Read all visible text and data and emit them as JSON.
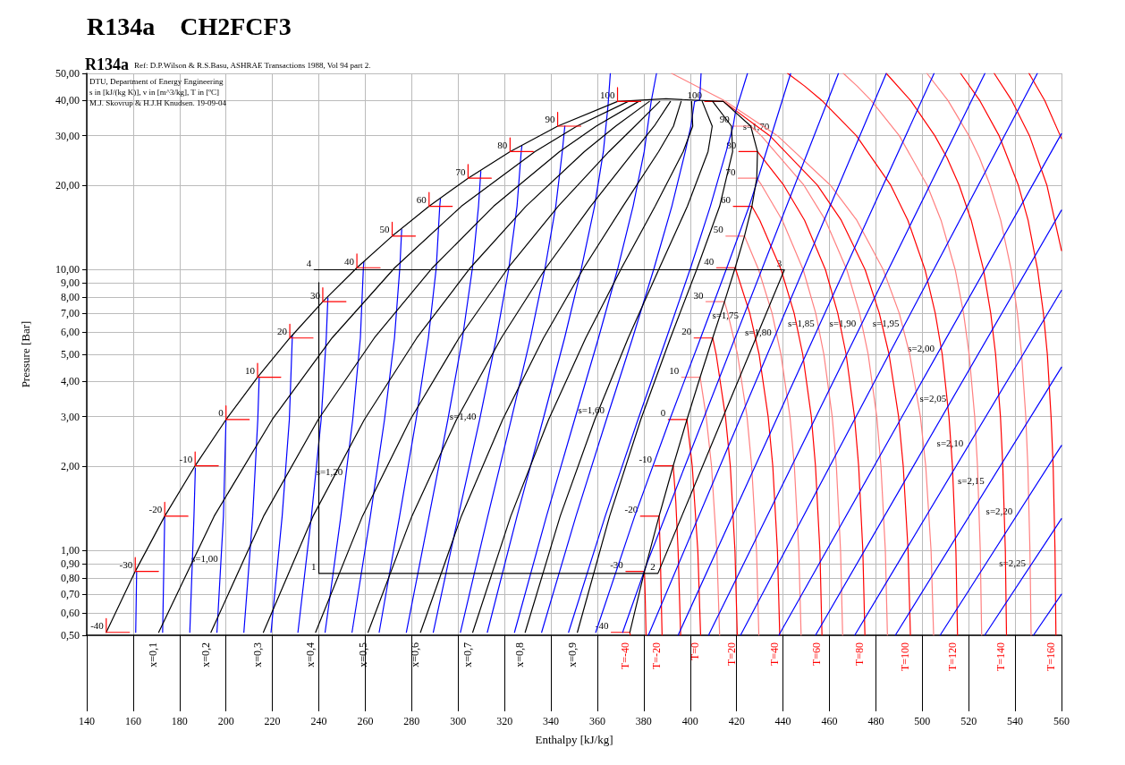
{
  "chart_data": {
    "type": "line",
    "title": "R134a    CH2FCF3",
    "xlabel": "Enthalpy [kJ/kg]",
    "ylabel": "Pressure [Bar]",
    "log": "y",
    "grid": true,
    "marker": "none",
    "line_style": "solid",
    "xlim": [
      140,
      560
    ],
    "ylim": [
      0.5,
      50
    ],
    "xticks": [
      140,
      160,
      180,
      200,
      220,
      240,
      260,
      280,
      300,
      320,
      340,
      360,
      380,
      400,
      420,
      440,
      460,
      480,
      500,
      520,
      540,
      560
    ],
    "yticks": [
      {
        "value": 0.5,
        "label": "0,50"
      },
      {
        "value": 0.6,
        "label": "0,60"
      },
      {
        "value": 0.7,
        "label": "0,70"
      },
      {
        "value": 0.8,
        "label": "0,80"
      },
      {
        "value": 0.9,
        "label": "0,90"
      },
      {
        "value": 1,
        "label": "1,00"
      },
      {
        "value": 2,
        "label": "2,00"
      },
      {
        "value": 3,
        "label": "3,00"
      },
      {
        "value": 4,
        "label": "4,00"
      },
      {
        "value": 5,
        "label": "5,00"
      },
      {
        "value": 6,
        "label": "6,00"
      },
      {
        "value": 7,
        "label": "7,00"
      },
      {
        "value": 8,
        "label": "8,00"
      },
      {
        "value": 9,
        "label": "9,00"
      },
      {
        "value": 10,
        "label": "10,00"
      },
      {
        "value": 20,
        "label": "20,00"
      },
      {
        "value": 30,
        "label": "30,00"
      },
      {
        "value": 40,
        "label": "40,00"
      },
      {
        "value": 50,
        "label": "50,00"
      }
    ],
    "series": [
      {
        "name": "T=-40",
        "color": "#ff0000",
        "x": [
          366.0,
          374.0,
          374.2
        ],
        "values": [
          0.512,
          0.512,
          0.5
        ]
      },
      {
        "color": "#ff0000",
        "x": [
          372.3,
          380.3,
          380.6,
          381.0
        ],
        "values": [
          0.844,
          0.844,
          0.7,
          0.5
        ]
      },
      {
        "name": "T=-20",
        "color": "#ff0000",
        "x": [
          378.6,
          386.6,
          387.1,
          387.9
        ],
        "values": [
          1.327,
          1.327,
          1,
          0.5
        ]
      },
      {
        "color": "#ff0000",
        "x": [
          384.7,
          392.7,
          393.8,
          394.8,
          395.9
        ],
        "values": [
          2.006,
          2.006,
          1.5,
          1,
          0.5
        ]
      },
      {
        "name": "T=0",
        "color": "#ff0000",
        "x": [
          390.6,
          398.6,
          400.9,
          403.3,
          404.5
        ],
        "values": [
          2.928,
          2.928,
          2,
          1,
          0.5
        ]
      },
      {
        "color": "#ff8080",
        "x": [
          396.3,
          404.3,
          406.9,
          409.2,
          411.5,
          412.7
        ],
        "values": [
          4.146,
          4.146,
          3,
          2,
          1,
          0.5
        ]
      },
      {
        "name": "T=20",
        "color": "#ff0000",
        "x": [
          401.7,
          409.7,
          411.2,
          415.2,
          417.3,
          419.3,
          420.3
        ],
        "values": [
          5.717,
          5.717,
          5,
          3,
          2,
          1,
          0.5
        ]
      },
      {
        "color": "#ff8080",
        "x": [
          406.8,
          414.8,
          416.2,
          420.4,
          424.5,
          426.5,
          428.6,
          429.6
        ],
        "values": [
          7.702,
          7.702,
          7,
          5,
          3,
          2,
          1,
          0.5
        ]
      },
      {
        "name": "T=40",
        "color": "#ff0000",
        "x": [
          411.4,
          419.4,
          425.7,
          429.7,
          433.6,
          435.6,
          437.6,
          438.6
        ],
        "values": [
          10.166,
          10.166,
          7,
          5,
          3,
          2,
          1,
          0.5
        ]
      },
      {
        "color": "#ff8080",
        "x": [
          415.4,
          423.4,
          429.5,
          435.3,
          439.1,
          443.0,
          444.9,
          446.8,
          447.8
        ],
        "values": [
          13.18,
          13.18,
          10,
          7,
          5,
          3,
          2,
          1,
          0.5
        ]
      },
      {
        "name": "T=60",
        "color": "#ff0000",
        "x": [
          418.6,
          426.6,
          430.0,
          439.2,
          444.8,
          448.5,
          452.2,
          454.0,
          455.9,
          456.8
        ],
        "values": [
          16.82,
          16.82,
          15,
          10,
          7,
          5,
          3,
          2,
          1,
          0.5
        ]
      },
      {
        "color": "#ff8080",
        "x": [
          420.7,
          428.7,
          430.8,
          439.7,
          448.7,
          454.1,
          457.6,
          461.2,
          463.0,
          464.8,
          465.7
        ],
        "values": [
          21.17,
          21.17,
          20,
          15,
          10,
          7,
          5,
          3,
          2,
          1,
          0.5
        ]
      },
      {
        "name": "T=80",
        "color": "#ff0000",
        "x": [
          421.0,
          429.0,
          440.3,
          449.3,
          458.3,
          463.6,
          467.2,
          470.8,
          472.6,
          474.4,
          475.3
        ],
        "values": [
          26.33,
          26.33,
          20,
          15,
          10,
          7,
          5,
          3,
          2,
          1,
          0.5
        ]
      },
      {
        "color": "#ff8080",
        "x": [
          418.1,
          426.1,
          430.6,
          449.0,
          458.3,
          467.5,
          473.0,
          476.7,
          480.4,
          482.2,
          484.1,
          485.0
        ],
        "values": [
          32.44,
          32.44,
          30,
          20,
          15,
          10,
          7,
          5,
          3,
          2,
          1,
          0.5
        ]
      },
      {
        "name": "T=100",
        "color": "#ff0000",
        "x": [
          406.3,
          414.3,
          434.3,
          454.8,
          465.1,
          475.4,
          481.5,
          485.7,
          489.8,
          491.8,
          493.9,
          494.9
        ],
        "values": [
          39.72,
          39.72,
          30,
          20,
          15,
          10,
          7,
          5,
          3,
          2,
          1,
          0.5
        ]
      },
      {
        "color": "#ff8080",
        "x": [
          392,
          414.8,
          437.6,
          460.4,
          471.8,
          483.2,
          490.1,
          494.6,
          499.2,
          501.5,
          503.8,
          504.9
        ],
        "values": [
          50,
          40,
          30,
          20,
          15,
          10,
          7,
          5,
          3,
          2,
          1,
          0.5
        ]
      },
      {
        "name": "T=120",
        "color": "#ff0000",
        "x": [
          442,
          449.4,
          456.8,
          471.6,
          486.4,
          493.8,
          501.2,
          505.6,
          508.6,
          511.5,
          513.0,
          514.5,
          515.2
        ],
        "values": [
          50,
          45,
          40,
          30,
          20,
          15,
          10,
          7,
          5,
          3,
          2,
          1,
          0.5
        ]
      },
      {
        "color": "#ff8080",
        "x": [
          466,
          472.0,
          478.0,
          490.1,
          502.1,
          508.1,
          514.2,
          517.8,
          520.2,
          522.6,
          523.8,
          525.0,
          525.6
        ],
        "values": [
          50,
          45,
          40,
          30,
          20,
          15,
          10,
          7,
          5,
          3,
          2,
          1,
          0.5
        ]
      },
      {
        "name": "T=140",
        "color": "#ff0000",
        "x": [
          484.5,
          495.0,
          505.4,
          510.7,
          515.9,
          521.1,
          526.4,
          529.5,
          531.6,
          533.7,
          534.7,
          535.8,
          536.3
        ],
        "values": [
          50,
          40,
          30,
          25,
          20,
          15,
          10,
          7,
          5,
          3,
          2,
          1,
          0.5
        ]
      },
      {
        "color": "#ff8080",
        "x": [
          502,
          511.1,
          520.1,
          524.7,
          529.2,
          533.8,
          538.3,
          541.0,
          542.8,
          544.6,
          545.5,
          546.4,
          546.9
        ],
        "values": [
          50,
          40,
          30,
          25,
          20,
          15,
          10,
          7,
          5,
          3,
          2,
          1,
          0.5
        ]
      },
      {
        "name": "T=160",
        "color": "#ff0000",
        "x": [
          516.5,
          524.8,
          533.1,
          541.4,
          545.6,
          549.7,
          552.2,
          553.9,
          555.5,
          556.4,
          557.2,
          557.6
        ],
        "values": [
          50,
          40,
          30,
          20,
          15,
          10,
          7,
          5,
          3,
          2,
          1,
          0.5
        ]
      },
      {
        "color": "#ff0000",
        "x": [
          531,
          538.6,
          546.2,
          553.7,
          560
        ],
        "values": [
          50,
          40,
          30,
          20,
          11.7
        ]
      },
      {
        "color": "#ff0000",
        "x": [
          546,
          552.8,
          560
        ],
        "values": [
          50,
          40,
          29.3
        ]
      },
      {
        "color": "#0000ff",
        "x": [
          161.1,
          161.5
        ],
        "values": [
          0.512,
          0.84
        ]
      },
      {
        "color": "#0000ff",
        "x": [
          172.7,
          173.6
        ],
        "values": [
          0.512,
          1.327
        ]
      },
      {
        "color": "#0000ff",
        "x": [
          184.4,
          186.2,
          186.8
        ],
        "values": [
          0.512,
          1.327,
          1.969
        ]
      },
      {
        "color": "#0000ff",
        "x": [
          196.1,
          198.9,
          200.0
        ],
        "values": [
          0.512,
          1.327,
          2.928
        ]
      },
      {
        "color": "#0000ff",
        "x": [
          207.7,
          211.5,
          213.7,
          214.3
        ],
        "values": [
          0.512,
          1.327,
          2.928,
          4.143
        ]
      },
      {
        "color": "#0000ff",
        "x": [
          219.4,
          224.2,
          227.3,
          228.6
        ],
        "values": [
          0.512,
          1.327,
          2.928,
          5.85
        ]
      },
      {
        "color": "#0000ff",
        "x": [
          231.0,
          236.8,
          241.0,
          243.2,
          243.9
        ],
        "values": [
          0.512,
          1.327,
          2.928,
          5.717,
          7.93
        ]
      },
      {
        "color": "#0000ff",
        "x": [
          242.7,
          249.5,
          254.6,
          257.9,
          259.2,
          259.4
        ],
        "values": [
          0.512,
          1.327,
          2.928,
          5.717,
          10.166,
          10.67
        ]
      },
      {
        "color": "#0000ff",
        "x": [
          254.3,
          262.2,
          268.3,
          272.6,
          274.9,
          275.7
        ],
        "values": [
          0.512,
          1.327,
          2.928,
          5.717,
          10.166,
          13.9
        ]
      },
      {
        "color": "#0000ff",
        "x": [
          266.0,
          274.8,
          281.9,
          287.2,
          290.6,
          292.1,
          292.4
        ],
        "values": [
          0.512,
          1.327,
          2.928,
          5.717,
          10.166,
          16.82,
          17.9
        ]
      },
      {
        "color": "#0000ff",
        "x": [
          277.7,
          287.5,
          295.6,
          301.9,
          306.2,
          308.8,
          309.8
        ],
        "values": [
          0.512,
          1.327,
          2.928,
          5.717,
          10.166,
          16.82,
          22.39
        ]
      },
      {
        "color": "#0000ff",
        "x": [
          289.3,
          300.1,
          309.3,
          316.5,
          321.9,
          325.4,
          327.2,
          327.5
        ],
        "values": [
          0.512,
          1.327,
          2.928,
          5.717,
          10.166,
          16.82,
          26.33,
          27.55
        ]
      },
      {
        "color": "#0000ff",
        "x": [
          301.0,
          312.8,
          322.9,
          331.2,
          337.5,
          342.1,
          344.9,
          346.0
        ],
        "values": [
          0.512,
          1.327,
          2.928,
          5.717,
          10.166,
          16.82,
          26.33,
          32.47
        ]
      },
      {
        "color": "#0000ff",
        "x": [
          312.6,
          325.4,
          336.6,
          345.9,
          353.2,
          358.8,
          362.6,
          364.6,
          365.6
        ],
        "values": [
          0.512,
          1.327,
          2.928,
          5.717,
          10.166,
          16.82,
          26.33,
          38.29,
          50
        ]
      },
      {
        "color": "#0000ff",
        "x": [
          324.3,
          338.1,
          350.2,
          360.5,
          368.9,
          375.4,
          380.2,
          383.2,
          385.5
        ],
        "values": [
          0.512,
          1.327,
          2.928,
          5.717,
          10.166,
          16.82,
          26.33,
          39.72,
          50
        ]
      },
      {
        "color": "#0000ff",
        "x": [
          336.0,
          350.8,
          363.9,
          375.2,
          384.5,
          392.1,
          397.9,
          400.3,
          401.9,
          404.1,
          404.7
        ],
        "values": [
          0.512,
          1.327,
          2.928,
          5.717,
          10.166,
          16.82,
          26.33,
          32.44,
          39.72,
          40.2,
          50
        ]
      },
      {
        "color": "#0000ff",
        "x": [
          347.6,
          363.4,
          377.5,
          389.8,
          400.2,
          408.7,
          415.5,
          418.5,
          419.5,
          424.7
        ],
        "values": [
          0.512,
          1.327,
          2.928,
          5.717,
          10.166,
          16.82,
          26.33,
          32.44,
          36.3,
          50
        ]
      },
      {
        "color": "#0000ff",
        "x": [
          359.3,
          376.1,
          391.2,
          404.5,
          415.8,
          425.4,
          427.2,
          443.3
        ],
        "values": [
          0.512,
          1.327,
          2.928,
          5.717,
          10.166,
          16.82,
          18.68,
          50
        ]
      },
      {
        "color": "#0000ff",
        "x": [
          370.9,
          381.7,
          463.9
        ],
        "values": [
          0.512,
          0.916,
          50
        ]
      },
      {
        "color": "#0000ff",
        "x": [
          382.0,
          484.5
        ],
        "values": [
          0.5,
          50
        ]
      },
      {
        "color": "#0000ff",
        "x": [
          394.8,
          505.1
        ],
        "values": [
          0.5,
          50
        ]
      },
      {
        "color": "#0000ff",
        "x": [
          407.9,
          527.0
        ],
        "values": [
          0.5,
          50
        ]
      },
      {
        "color": "#0000ff",
        "x": [
          421.7,
          549.6
        ],
        "values": [
          0.5,
          50
        ]
      },
      {
        "color": "#0000ff",
        "x": [
          438.2,
          560
        ],
        "values": [
          0.5,
          30.5
        ]
      },
      {
        "color": "#0000ff",
        "x": [
          454.0,
          560
        ],
        "values": [
          0.5,
          16.3
        ]
      },
      {
        "color": "#0000ff",
        "x": [
          470.9,
          560
        ],
        "values": [
          0.5,
          8.45
        ]
      },
      {
        "color": "#0000ff",
        "x": [
          488.4,
          560
        ],
        "values": [
          0.5,
          4.5
        ]
      },
      {
        "color": "#0000ff",
        "x": [
          507.7,
          560
        ],
        "values": [
          0.5,
          2.37
        ]
      },
      {
        "color": "#0000ff",
        "x": [
          526.9,
          560
        ],
        "values": [
          0.5,
          1.3
        ]
      },
      {
        "color": "#0000ff",
        "x": [
          547.9,
          560
        ],
        "values": [
          0.5,
          0.7
        ]
      },
      {
        "name": "x=0,1",
        "color": "#000000",
        "x": [
          171.0,
          194.9,
          219.9,
          245.7,
          272.7,
          301.4,
          333.1,
          351.2,
          373.3
        ],
        "values": [
          0.512,
          1.327,
          2.928,
          5.717,
          10.166,
          16.82,
          26.33,
          32.44,
          39.72
        ]
      },
      {
        "name": "x=0,2",
        "color": "#000000",
        "x": [
          193.5,
          216.2,
          239.7,
          263.9,
          289.0,
          315.3,
          343.7,
          359.5,
          377.8
        ],
        "values": [
          0.512,
          1.327,
          2.928,
          5.717,
          10.166,
          16.82,
          26.33,
          32.44,
          39.72
        ]
      },
      {
        "name": "x=0,3",
        "color": "#000000",
        "x": [
          216.1,
          237.5,
          259.6,
          282.2,
          305.3,
          329.2,
          354.4,
          367.9,
          382.4
        ],
        "values": [
          0.512,
          1.327,
          2.928,
          5.717,
          10.166,
          16.82,
          26.33,
          32.44,
          39.72
        ]
      },
      {
        "name": "x=0,4",
        "color": "#000000",
        "x": [
          238.6,
          258.8,
          279.4,
          300.4,
          321.6,
          343.1,
          365.0,
          376.2,
          386.9
        ],
        "values": [
          0.512,
          1.327,
          2.928,
          5.717,
          10.166,
          16.82,
          26.33,
          32.44,
          39.72
        ]
      },
      {
        "name": "x=0,5",
        "color": "#000000",
        "x": [
          261.2,
          280.1,
          299.3,
          318.6,
          337.9,
          357.1,
          375.7,
          384.5,
          391.5
        ],
        "values": [
          0.512,
          1.327,
          2.928,
          5.717,
          10.166,
          16.82,
          26.33,
          32.44,
          39.72
        ]
      },
      {
        "name": "x=0,6",
        "color": "#000000",
        "x": [
          283.8,
          301.4,
          319.2,
          336.8,
          354.2,
          371.0,
          386.4,
          392.8,
          396.1
        ],
        "values": [
          0.512,
          1.327,
          2.928,
          5.717,
          10.166,
          16.82,
          26.33,
          32.44,
          39.72
        ]
      },
      {
        "name": "x=0,7",
        "color": "#000000",
        "x": [
          306.3,
          322.7,
          339.0,
          355.0,
          370.5,
          384.9,
          397.0,
          401.1,
          400.6
        ],
        "values": [
          0.512,
          1.327,
          2.928,
          5.717,
          10.166,
          16.82,
          26.33,
          32.44,
          39.72
        ]
      },
      {
        "name": "x=0,8",
        "color": "#000000",
        "x": [
          328.9,
          344.0,
          358.9,
          373.3,
          386.8,
          398.8,
          407.7,
          409.5,
          405.2
        ],
        "values": [
          0.512,
          1.327,
          2.928,
          5.717,
          10.166,
          16.82,
          26.33,
          32.44,
          39.72
        ]
      },
      {
        "name": "x=0,9",
        "color": "#000000",
        "x": [
          351.4,
          365.3,
          378.7,
          391.5,
          403.1,
          412.7,
          418.3,
          417.8,
          409.7
        ],
        "values": [
          0.512,
          1.327,
          2.928,
          5.717,
          10.166,
          16.82,
          26.33,
          32.44,
          39.72
        ]
      },
      {
        "color": "#000000",
        "x": [
          148.4,
          160.9,
          173.6,
          186.7,
          200.0,
          213.6,
          227.5,
          241.7,
          256.4,
          271.6,
          287.5,
          304.3,
          322.4,
          342.9,
          368.7,
          389.6,
          414.3,
          426.1,
          429.0,
          428.7,
          426.6,
          423.4,
          419.4,
          414.8,
          409.7,
          404.3,
          398.6,
          392.7,
          386.6,
          380.3,
          374.0
        ],
        "values": [
          0.512,
          0.844,
          1.327,
          2.006,
          2.928,
          4.146,
          5.717,
          7.702,
          10.166,
          13.18,
          16.82,
          21.17,
          26.33,
          32.44,
          39.72,
          40.59,
          39.72,
          32.44,
          26.33,
          21.17,
          16.82,
          13.18,
          10.166,
          7.702,
          5.717,
          4.146,
          2.928,
          2.006,
          1.327,
          0.844,
          0.512
        ]
      },
      {
        "color": "#ff0000",
        "x": [
          148.4,
          148.4,
          158.4,
          null,
          160.9,
          160.9,
          170.9,
          null,
          173.6,
          173.6,
          183.6,
          null,
          186.7,
          186.7,
          196.7,
          null,
          200.0,
          200.0,
          210.0,
          null,
          213.6,
          213.6,
          223.6,
          null,
          227.5,
          227.5,
          237.5,
          null,
          241.7,
          241.7,
          251.7,
          null,
          256.4,
          256.4,
          266.4,
          null,
          271.6,
          271.6,
          281.6,
          null,
          287.5,
          287.5,
          297.5,
          null,
          304.3,
          304.3,
          314.3,
          null,
          322.4,
          322.4,
          332.4,
          null,
          342.9,
          342.9,
          352.9,
          null,
          368.7,
          368.7,
          378.7
        ],
        "values": [
          0.573,
          0.512,
          0.512,
          null,
          0.945,
          0.844,
          0.844,
          null,
          1.486,
          1.327,
          1.327,
          null,
          2.247,
          2.006,
          2.006,
          null,
          3.279,
          2.928,
          2.928,
          null,
          4.644,
          4.146,
          4.146,
          null,
          6.403,
          5.717,
          5.717,
          null,
          8.626,
          7.702,
          7.702,
          null,
          11.386,
          10.166,
          10.166,
          null,
          14.76,
          13.18,
          13.18,
          null,
          18.84,
          16.82,
          16.82,
          null,
          23.71,
          21.17,
          21.17,
          null,
          29.49,
          26.33,
          26.33,
          null,
          36.33,
          32.44,
          32.44,
          null,
          44.49,
          39.72,
          39.72
        ]
      },
      {
        "color": "#000000",
        "x": [
          238,
          440.6,
          386.1,
          240,
          240
        ],
        "values": [
          10,
          10,
          0.83,
          0.83,
          9.0
        ]
      }
    ],
    "annotations": [
      "R134a",
      "Ref: D.P.Wilson & R.S.Basu, ASHRAE Transactions 1988, Vol 94 part 2.",
      "DTU, Department of Energy Engineering",
      "s in [kJ/(kg K)], v in [m^3/kg], T in [ºC]",
      "M.J. Skovrup & H.J.H Knudsen. 19-09-04",
      {
        "text": "-40",
        "x": 148.4,
        "y": 0.512
      },
      {
        "text": "-30",
        "x": 160.9,
        "y": 0.844
      },
      {
        "text": "-20",
        "x": 173.6,
        "y": 1.327
      },
      {
        "text": "-10",
        "x": 186.7,
        "y": 2.006
      },
      {
        "text": "0",
        "x": 200.0,
        "y": 2.928
      },
      {
        "text": "10",
        "x": 213.6,
        "y": 4.146
      },
      {
        "text": "20",
        "x": 227.5,
        "y": 5.717
      },
      {
        "text": "30",
        "x": 241.7,
        "y": 7.702
      },
      {
        "text": "40",
        "x": 256.4,
        "y": 10.166
      },
      {
        "text": "50",
        "x": 271.6,
        "y": 13.18
      },
      {
        "text": "60",
        "x": 287.5,
        "y": 16.82
      },
      {
        "text": "70",
        "x": 304.3,
        "y": 21.17
      },
      {
        "text": "80",
        "x": 322.4,
        "y": 26.33
      },
      {
        "text": "90",
        "x": 342.9,
        "y": 32.44
      },
      {
        "text": "100",
        "x": 368.7,
        "y": 39.72
      },
      {
        "text": "-40",
        "x": 366.0,
        "y": 0.512
      },
      {
        "text": "-30",
        "x": 372.3,
        "y": 0.844
      },
      {
        "text": "-20",
        "x": 378.6,
        "y": 1.327
      },
      {
        "text": "-10",
        "x": 384.7,
        "y": 2.006
      },
      {
        "text": "0",
        "x": 390.6,
        "y": 2.928
      },
      {
        "text": "10",
        "x": 396.3,
        "y": 4.146
      },
      {
        "text": "20",
        "x": 401.7,
        "y": 5.717
      },
      {
        "text": "30",
        "x": 406.8,
        "y": 7.702
      },
      {
        "text": "40",
        "x": 411.4,
        "y": 10.166
      },
      {
        "text": "50",
        "x": 415.4,
        "y": 13.18
      },
      {
        "text": "60",
        "x": 418.6,
        "y": 16.82
      },
      {
        "text": "70",
        "x": 420.7,
        "y": 21.17
      },
      {
        "text": "80",
        "x": 421.0,
        "y": 26.33
      },
      {
        "text": "90",
        "x": 418.1,
        "y": 32.44
      },
      {
        "text": "100",
        "x": 406.3,
        "y": 39.72
      },
      {
        "text": "s=1,00",
        "x": 197.7,
        "y": 0.89
      },
      {
        "text": "s=1,20",
        "x": 251.5,
        "y": 1.81
      },
      {
        "text": "s=1,40",
        "x": 309.0,
        "y": 2.85
      },
      {
        "text": "s=1,60",
        "x": 364.3,
        "y": 3.0
      },
      {
        "text": "s=1,70",
        "x": 435.3,
        "y": 30.6
      },
      {
        "text": "s=1,75",
        "x": 422.1,
        "y": 6.54
      },
      {
        "text": "s=1,80",
        "x": 436.2,
        "y": 5.7
      },
      {
        "text": "s=1,85",
        "x": 454.7,
        "y": 6.1
      },
      {
        "text": "s=1,90",
        "x": 472.6,
        "y": 6.1
      },
      {
        "text": "s=1,95",
        "x": 491.2,
        "y": 6.1
      },
      {
        "text": "s=2,00",
        "x": 506.4,
        "y": 4.99
      },
      {
        "text": "s=2,05",
        "x": 511.5,
        "y": 3.31
      },
      {
        "text": "s=2,10",
        "x": 518.9,
        "y": 2.29
      },
      {
        "text": "s=2,15",
        "x": 527.9,
        "y": 1.68
      },
      {
        "text": "s=2,20",
        "x": 540.1,
        "y": 1.31
      },
      {
        "text": "s=2,25",
        "x": 545.7,
        "y": 0.86
      },
      {
        "text": "1",
        "x": 240,
        "y": 0.83
      },
      {
        "text": "2",
        "x": 386.1,
        "y": 0.83
      },
      {
        "text": "3",
        "x": 440.6,
        "y": 10
      },
      {
        "text": "4",
        "x": 238,
        "y": 10
      }
    ]
  }
}
